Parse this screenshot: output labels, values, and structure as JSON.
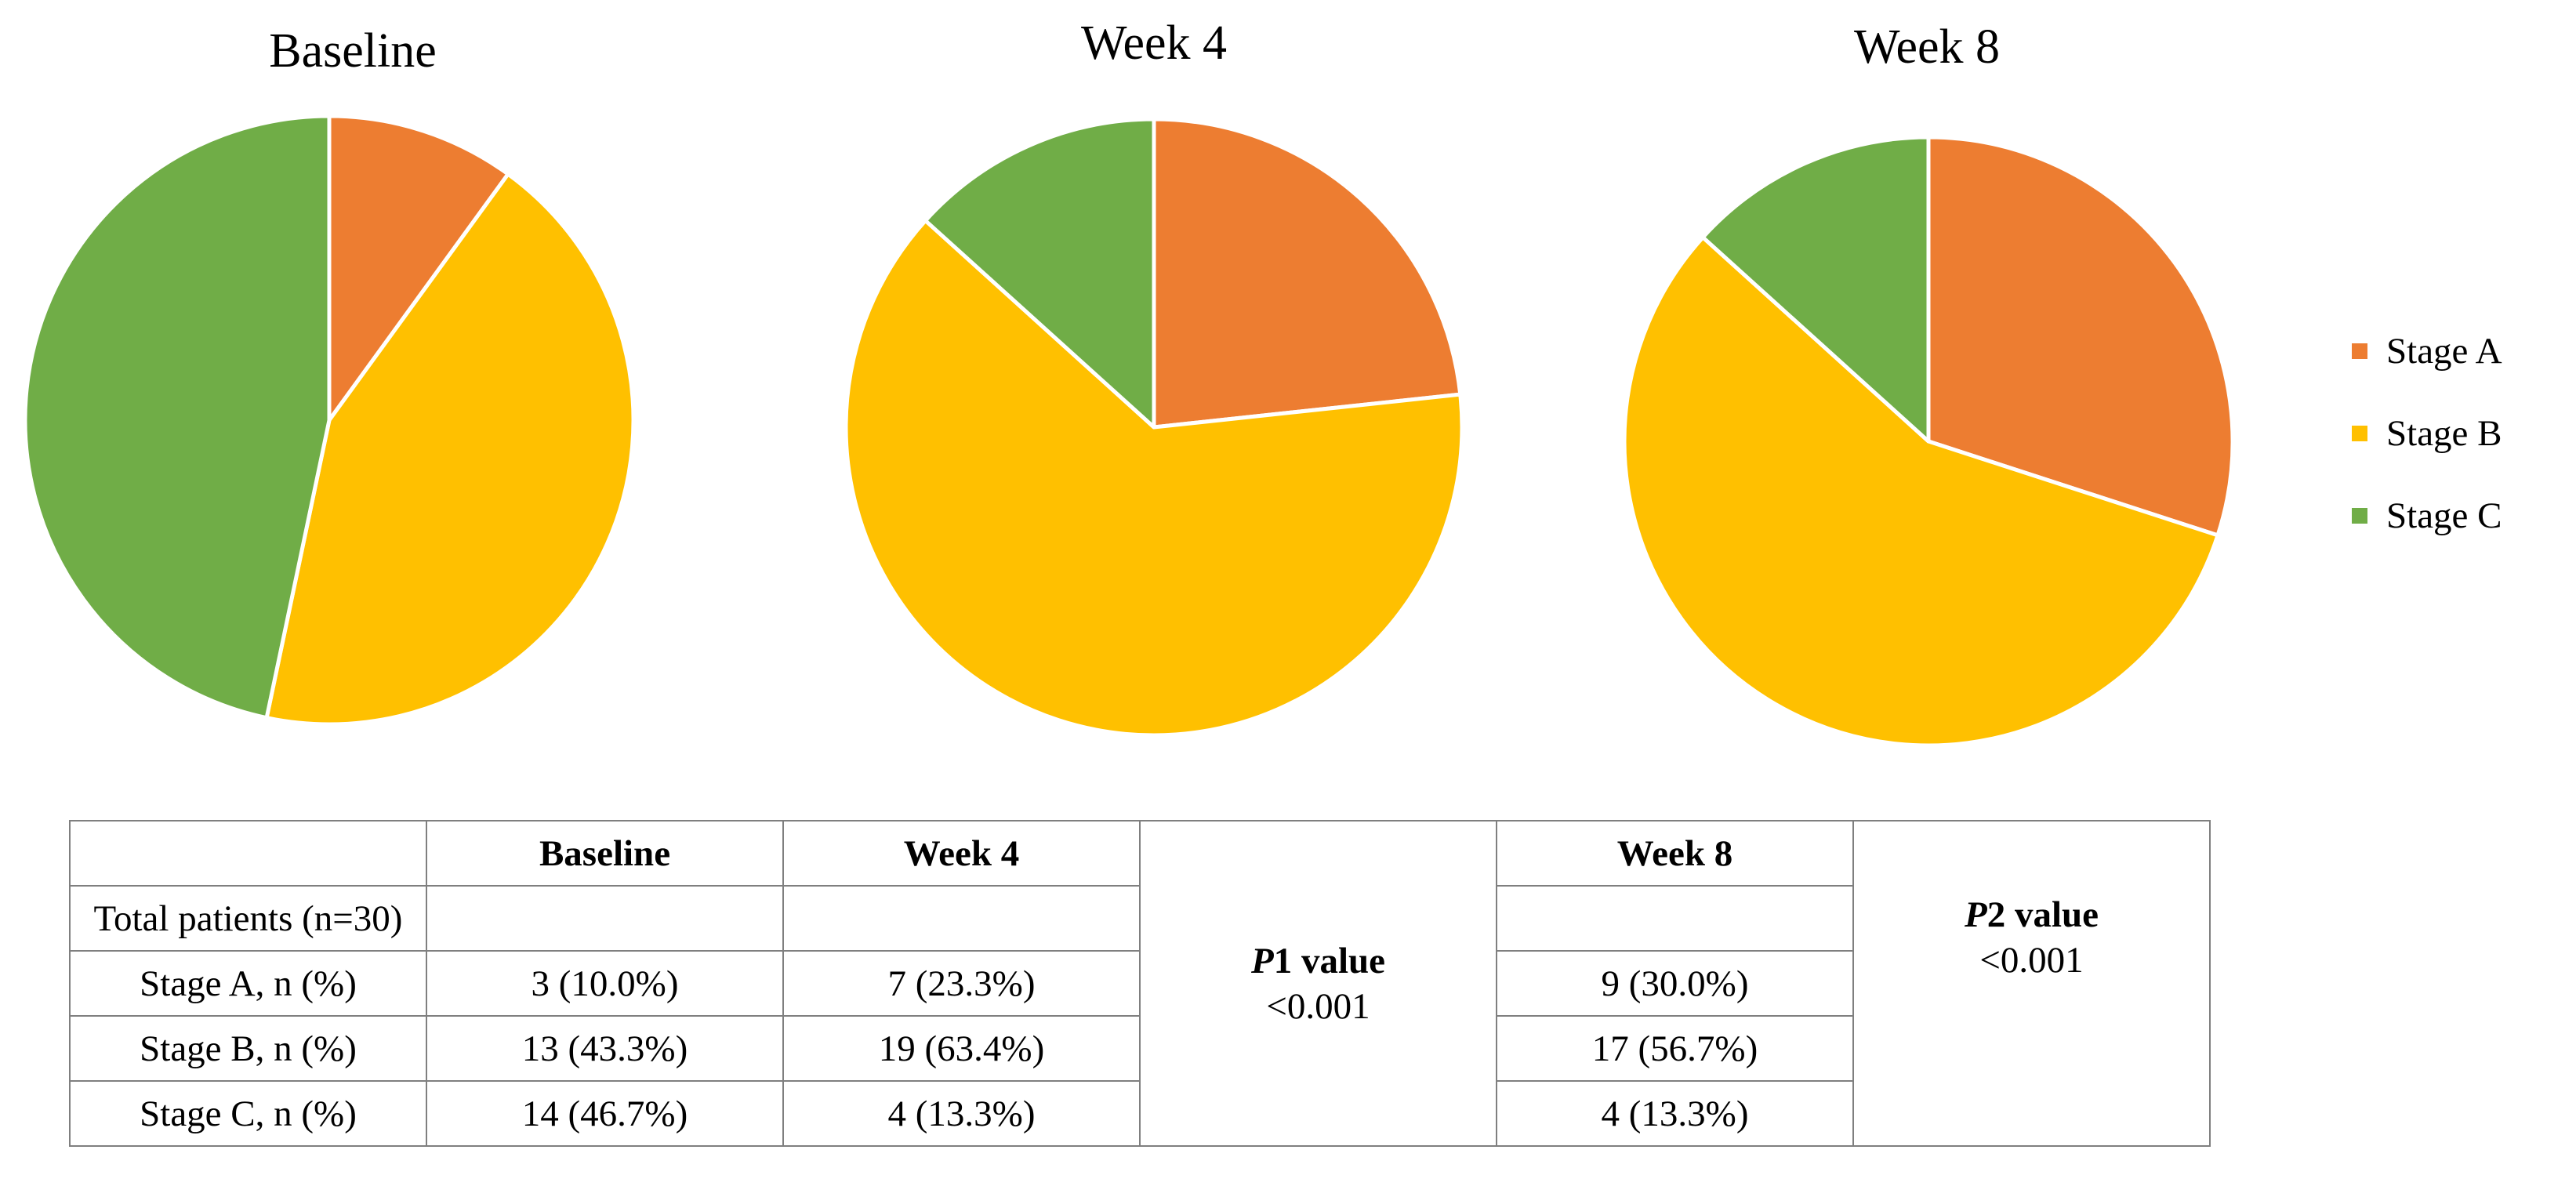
{
  "chart_data": [
    {
      "type": "pie",
      "title": "Baseline",
      "labels": [
        "Stage A",
        "Stage B",
        "Stage C"
      ],
      "values": [
        10.0,
        43.3,
        46.7
      ],
      "counts": [
        3,
        13,
        14
      ]
    },
    {
      "type": "pie",
      "title": "Week 4",
      "labels": [
        "Stage A",
        "Stage B",
        "Stage C"
      ],
      "values": [
        23.3,
        63.4,
        13.3
      ],
      "counts": [
        7,
        19,
        4
      ]
    },
    {
      "type": "pie",
      "title": "Week 8",
      "labels": [
        "Stage A",
        "Stage B",
        "Stage C"
      ],
      "values": [
        30.0,
        56.7,
        13.3
      ],
      "counts": [
        9,
        17,
        4
      ]
    }
  ],
  "colors": {
    "stage_a": "#ED7D31",
    "stage_b": "#FFC000",
    "stage_c": "#70AD47"
  },
  "legend": {
    "items": [
      "Stage A",
      "Stage B",
      "Stage C"
    ],
    "position": "right"
  },
  "table": {
    "headers": [
      "",
      "Baseline",
      "Week 4",
      "Week 8"
    ],
    "total_label": "Total patients (n=30)",
    "rows": [
      {
        "label": "Stage A, n (%)",
        "baseline": "3 (10.0%)",
        "week4": "7 (23.3%)",
        "week8": "9 (30.0%)"
      },
      {
        "label": "Stage B, n (%)",
        "baseline": "13 (43.3%)",
        "week4": "19 (63.4%)",
        "week8": "17 (56.7%)"
      },
      {
        "label": "Stage C, n (%)",
        "baseline": "14 (46.7%)",
        "week4": "4 (13.3%)",
        "week8": "4 (13.3%)"
      }
    ],
    "p1": {
      "label_p": "P",
      "label_rest": "1 value",
      "value": "<0.001"
    },
    "p2": {
      "label_p": "P",
      "label_rest": "2 value",
      "value": "<0.001"
    }
  }
}
